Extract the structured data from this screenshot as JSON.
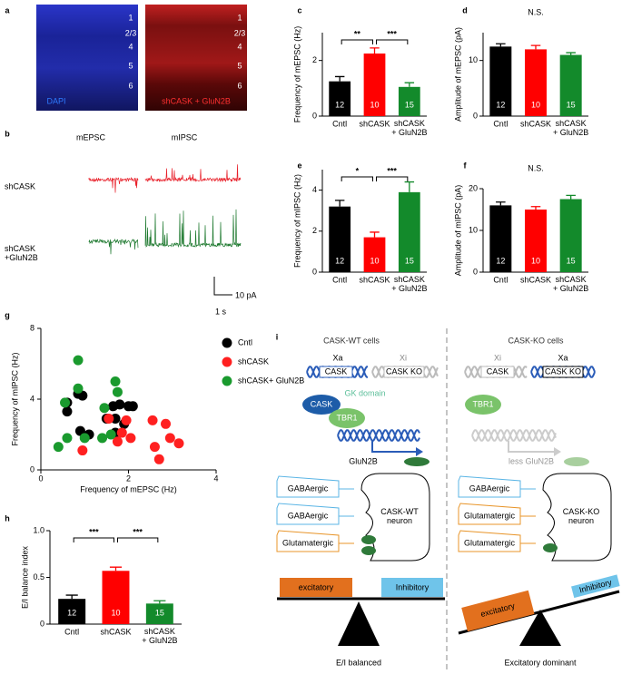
{
  "panel_a": {
    "label": "a",
    "images": [
      "DAPI",
      "shCASK + GluN2B"
    ],
    "layers": [
      "1",
      "2/3",
      "4",
      "5",
      "6"
    ]
  },
  "panel_b": {
    "label": "b",
    "columns": [
      "mEPSC",
      "mIPSC"
    ],
    "rows": [
      "shCASK",
      "shCASK\n+GluN2B"
    ],
    "scale_y": "10 pA",
    "scale_x": "1 s"
  },
  "chart_data": [
    {
      "type": "bar",
      "panel": "c",
      "ylabel": "Frequency of mEPSC (Hz)",
      "categories": [
        "Cntl",
        "shCASK",
        "shCASK\n+ GluN2B"
      ],
      "values": [
        1.25,
        2.25,
        1.05
      ],
      "errors": [
        0.17,
        0.2,
        0.15
      ],
      "n": [
        12,
        10,
        15
      ],
      "colors": [
        "#000000",
        "#ff0000",
        "#138a2b"
      ],
      "ylim": [
        0,
        3
      ],
      "yticks": [
        0,
        2
      ],
      "significance": [
        "**",
        "***"
      ]
    },
    {
      "type": "bar",
      "panel": "d",
      "ylabel": "Amplitude of mEPSC (pA)",
      "annotation": "N.S.",
      "categories": [
        "Cntl",
        "shCASK",
        "shCASK\n+ GluN2B"
      ],
      "values": [
        12.5,
        12,
        11
      ],
      "errors": [
        0.5,
        0.7,
        0.4
      ],
      "n": [
        12,
        10,
        15
      ],
      "colors": [
        "#000000",
        "#ff0000",
        "#138a2b"
      ],
      "ylim": [
        0,
        15
      ],
      "yticks": [
        0,
        10
      ]
    },
    {
      "type": "bar",
      "panel": "e",
      "ylabel": "Frequency of mIPSC (Hz)",
      "categories": [
        "Cntl",
        "shCASK",
        "shCASK\n+ GluN2B"
      ],
      "values": [
        3.2,
        1.7,
        3.9
      ],
      "errors": [
        0.3,
        0.25,
        0.5
      ],
      "n": [
        12,
        10,
        15
      ],
      "colors": [
        "#000000",
        "#ff0000",
        "#138a2b"
      ],
      "ylim": [
        0,
        5
      ],
      "yticks": [
        0,
        2,
        4
      ],
      "significance": [
        "*",
        "***"
      ]
    },
    {
      "type": "bar",
      "panel": "f",
      "ylabel": "Amplitude of mIPSC (pA)",
      "annotation": "N.S.",
      "categories": [
        "Cntl",
        "shCASK",
        "shCASK\n+ GluN2B"
      ],
      "values": [
        16,
        15,
        17.5
      ],
      "errors": [
        0.8,
        0.7,
        0.9
      ],
      "n": [
        12,
        10,
        15
      ],
      "colors": [
        "#000000",
        "#ff0000",
        "#138a2b"
      ],
      "ylim": [
        0,
        20
      ],
      "yticks": [
        0,
        10,
        20
      ]
    },
    {
      "type": "scatter",
      "panel": "g",
      "xlabel": "Frequency of mEPSC (Hz)",
      "ylabel": "Frequency of mIPSC (Hz)",
      "xlim": [
        0,
        4
      ],
      "xticks": [
        0,
        2,
        4
      ],
      "ylim": [
        0,
        8
      ],
      "yticks": [
        0,
        4,
        8
      ],
      "series": [
        {
          "name": "Cntl",
          "color": "#000000",
          "x": [
            0.6,
            0.6,
            0.85,
            0.95,
            0.9,
            1.1,
            1.7,
            1.65,
            1.7,
            1.8,
            2.0,
            2.1,
            1.5,
            1.9
          ],
          "values": [
            3.3,
            3.8,
            4.3,
            4.2,
            2.2,
            2.0,
            2.1,
            3.6,
            2.9,
            3.7,
            3.6,
            3.6,
            2.9,
            2.6
          ]
        },
        {
          "name": "shCASK",
          "color": "#ff2020",
          "x": [
            0.95,
            1.55,
            1.75,
            1.85,
            1.95,
            2.05,
            2.55,
            2.6,
            2.7,
            2.85,
            2.95,
            3.15
          ],
          "values": [
            1.1,
            2.9,
            1.6,
            2.1,
            2.8,
            1.8,
            2.8,
            1.3,
            0.6,
            2.6,
            1.8,
            1.5
          ]
        },
        {
          "name": "shCASK+ GluN2B",
          "color": "#1a9a2e",
          "x": [
            0.4,
            0.55,
            0.6,
            0.85,
            0.85,
            1.0,
            1.7,
            1.75,
            1.45,
            1.6,
            1.4
          ],
          "values": [
            1.3,
            3.8,
            1.8,
            6.2,
            4.6,
            1.8,
            5.0,
            4.4,
            3.5,
            2.0,
            1.8
          ]
        }
      ]
    },
    {
      "type": "bar",
      "panel": "h",
      "ylabel": "E/I balance index",
      "categories": [
        "Cntl",
        "shCASK",
        "shCASK\n+ GluN2B"
      ],
      "values": [
        0.27,
        0.57,
        0.22
      ],
      "errors": [
        0.04,
        0.04,
        0.03
      ],
      "n": [
        12,
        10,
        15
      ],
      "colors": [
        "#000000",
        "#ff0000",
        "#138a2b"
      ],
      "ylim": [
        0,
        1
      ],
      "yticks": [
        0,
        0.5,
        {
          "value": 1,
          "label": "1.0"
        }
      ],
      "significance": [
        "***",
        "***"
      ]
    }
  ],
  "panel_i": {
    "label": "i",
    "wt": {
      "title": "CASK-WT cells",
      "xa": "Xa",
      "xi": "Xi",
      "gene": "CASK",
      "gene_ko": "CASK KO",
      "cask": "CASK",
      "gk": "GK domain",
      "tbr1": "TBR1",
      "target": "GluN2B",
      "inputs": [
        "GABAergic",
        "GABAergic",
        "Glutamatergic"
      ],
      "neuron": "CASK-WT\nneuron",
      "excitatory": "excitatory",
      "inhibitory": "Inhibitory",
      "outcome": "E/I balanced"
    },
    "ko": {
      "title": "CASK-KO cells",
      "xi": "Xi",
      "xa": "Xa",
      "gene": "CASK",
      "gene_ko": "CASK KO",
      "tbr1": "TBR1",
      "target": "less GluN2B",
      "inputs": [
        "GABAergic",
        "Glutamatergic",
        "Glutamatergic"
      ],
      "neuron": "CASK-KO\nneuron",
      "excitatory": "excitatory",
      "inhibitory": "Inhibitory",
      "outcome": "Excitatory dominant"
    }
  }
}
